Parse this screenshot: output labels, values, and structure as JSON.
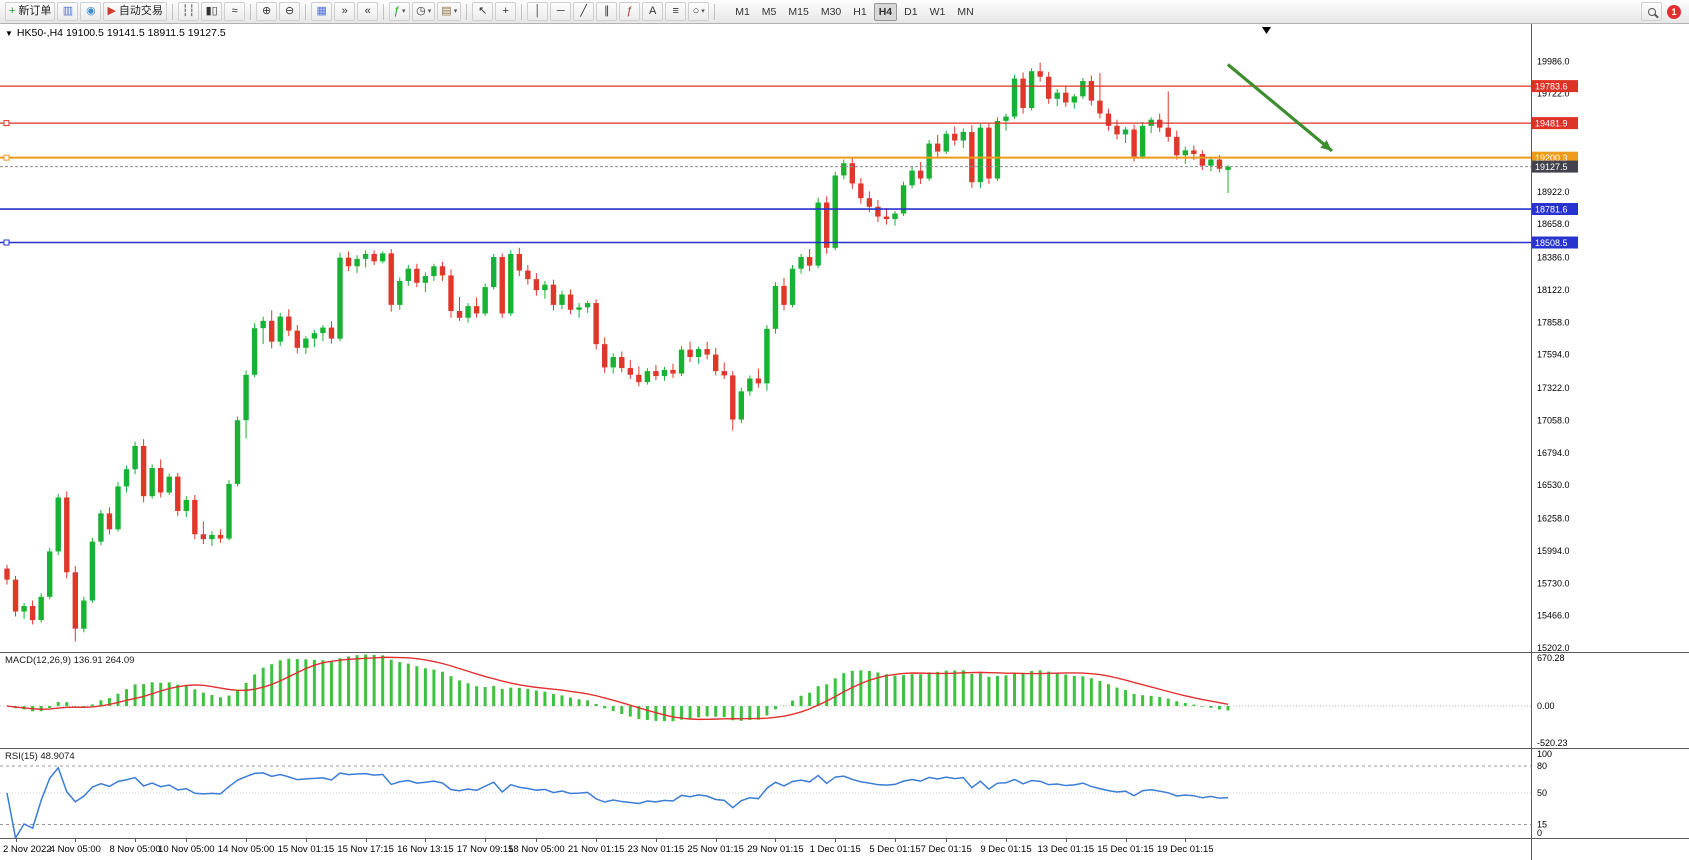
{
  "toolbar": {
    "notification_badge": "1",
    "timeframes": [
      "M1",
      "M5",
      "M15",
      "M30",
      "H1",
      "H4",
      "D1",
      "W1",
      "MN"
    ],
    "active_timeframe": "H4",
    "items": [
      {
        "type": "labeled",
        "name": "new-order-button",
        "icon": "new-order-icon",
        "glyph": "+",
        "color": "#1a9c1a",
        "label": "新订单"
      },
      {
        "type": "icon",
        "name": "charts-window-button",
        "icon": "chart-window-icon",
        "glyph": "▥",
        "color": "#4a6fd4"
      },
      {
        "type": "icon",
        "name": "profiles-button",
        "icon": "profiles-icon",
        "glyph": "◉",
        "color": "#3f8fd0"
      },
      {
        "type": "labeled",
        "name": "autotrading-button",
        "icon": "autotrading-icon",
        "glyph": "▶",
        "color": "#d03b2f",
        "label": "自动交易"
      },
      {
        "type": "sep"
      },
      {
        "type": "icon",
        "name": "ohlc-bars-button",
        "icon": "ohlc-bars-icon",
        "glyph": "┆┆",
        "color": "#333333"
      },
      {
        "type": "icon",
        "name": "candlestick-chart-button",
        "icon": "candlestick-icon",
        "glyph": "▮▯",
        "color": "#333333"
      },
      {
        "type": "icon",
        "name": "line-chart-button",
        "icon": "line-chart-icon",
        "glyph": "≈",
        "color": "#333333"
      },
      {
        "type": "sep"
      },
      {
        "type": "icon",
        "name": "zoom-in-button",
        "icon": "zoom-in-icon",
        "glyph": "⊕",
        "color": "#333333"
      },
      {
        "type": "icon",
        "name": "zoom-out-button",
        "icon": "zoom-out-icon",
        "glyph": "⊖",
        "color": "#333333"
      },
      {
        "type": "sep"
      },
      {
        "type": "icon",
        "name": "tile-windows-button",
        "icon": "tile-windows-icon",
        "glyph": "▦",
        "color": "#4a6fd4"
      },
      {
        "type": "icon",
        "name": "auto-scroll-button",
        "icon": "auto-scroll-icon",
        "glyph": "»",
        "color": "#333333"
      },
      {
        "type": "icon",
        "name": "chart-shift-button",
        "icon": "chart-shift-icon",
        "glyph": "«",
        "color": "#333333"
      },
      {
        "type": "sep"
      },
      {
        "type": "icon",
        "name": "indicators-button",
        "icon": "indicators-icon",
        "glyph": "ƒ",
        "color": "#1a9c1a",
        "caret": true
      },
      {
        "type": "icon",
        "name": "periods-button",
        "icon": "clock-icon",
        "glyph": "◷",
        "color": "#333333",
        "caret": true
      },
      {
        "type": "icon",
        "name": "templates-button",
        "icon": "template-icon",
        "glyph": "▤",
        "color": "#8a6d3b",
        "caret": true
      },
      {
        "type": "sep"
      },
      {
        "type": "icon",
        "name": "cursor-button",
        "icon": "cursor-icon",
        "glyph": "↖",
        "color": "#333333"
      },
      {
        "type": "icon",
        "name": "crosshair-button",
        "icon": "crosshair-icon",
        "glyph": "+",
        "color": "#333333"
      },
      {
        "type": "sep"
      },
      {
        "type": "icon",
        "name": "vertical-line-button",
        "icon": "vertical-line-icon",
        "glyph": "│",
        "color": "#333333"
      },
      {
        "type": "icon",
        "name": "horizontal-line-button",
        "icon": "horizontal-line-icon",
        "glyph": "─",
        "color": "#333333"
      },
      {
        "type": "icon",
        "name": "trendline-button",
        "icon": "trendline-icon",
        "glyph": "╱",
        "color": "#333333"
      },
      {
        "type": "icon",
        "name": "equidistant-channel-button",
        "icon": "channel-icon",
        "glyph": "∥",
        "color": "#333333"
      },
      {
        "type": "icon",
        "name": "fibonacci-button",
        "icon": "fibonacci-icon",
        "glyph": "ƒ",
        "color": "#b03030"
      },
      {
        "type": "icon",
        "name": "text-button",
        "icon": "text-icon",
        "glyph": "A",
        "color": "#333333"
      },
      {
        "type": "icon",
        "name": "label-button",
        "icon": "label-icon",
        "glyph": "≡",
        "color": "#333333"
      },
      {
        "type": "icon",
        "name": "shapes-button",
        "icon": "shapes-icon",
        "glyph": "○",
        "color": "#333333",
        "caret": true
      },
      {
        "type": "sep"
      },
      {
        "type": "tf-group"
      }
    ]
  },
  "chart": {
    "title": "HK50-,H4 19100.5 19141.5 18911.5 19127.5",
    "macd_label": "MACD(12,26,9) 136.91 264.09",
    "rsi_label": "RSI(15) 48.9074"
  },
  "chart_data": {
    "type": "candlestick",
    "symbol": "HK50-",
    "timeframe": "H4",
    "ohlc_display": {
      "open": 19100.5,
      "high": 19141.5,
      "low": 18911.5,
      "close": 19127.5
    },
    "y_max": 20290,
    "y_min": 15170,
    "axis_labels": [
      "19986.0",
      "19722.0",
      "19458.0",
      "19194.0",
      "18922.0",
      "18658.0",
      "18386.0",
      "18122.0",
      "17858.0",
      "17594.0",
      "17322.0",
      "17058.0",
      "16794.0",
      "16530.0",
      "16258.0",
      "15994.0",
      "15730.0",
      "15466.0",
      "15202.0"
    ],
    "hlines": [
      {
        "price": 19783.6,
        "label": "19783.6",
        "color": "#dd3226",
        "width": 1.2,
        "handle": false,
        "name": "resistance-line-19783"
      },
      {
        "price": 19481.9,
        "label": "19481.9",
        "color": "#dd3226",
        "width": 1.2,
        "handle": true,
        "name": "resistance-line-19481"
      },
      {
        "price": 19200.3,
        "label": "19200.3",
        "color": "#f09a1c",
        "width": 2,
        "handle": true,
        "name": "pivot-line-19200"
      },
      {
        "price": 18781.6,
        "label": "18781.6",
        "color": "#2733cf",
        "width": 1.6,
        "handle": false,
        "name": "support-line-18781"
      },
      {
        "price": 18508.5,
        "label": "18508.5",
        "color": "#2733cf",
        "width": 1.6,
        "handle": true,
        "name": "support-line-18508"
      }
    ],
    "current_price": {
      "value": 19127.5,
      "label": "19127.5"
    },
    "arrow": {
      "x1_frac": 0.802,
      "price1": 19960,
      "x2_frac": 0.87,
      "price2": 19255,
      "color": "#3d8e2f"
    },
    "macd": {
      "params": "12,26,9",
      "main_value": "136.91",
      "signal_value": "264.09",
      "range": [
        670.28,
        -520.23
      ],
      "axis_labels": [
        "670.28",
        "0.00",
        "-520.23"
      ]
    },
    "rsi": {
      "params": "15",
      "value": "48.9074",
      "levels": [
        80,
        15
      ],
      "mid_level": 50,
      "axis_labels": [
        "100",
        "80",
        "50",
        "15",
        "0"
      ]
    },
    "time_ticks": [
      {
        "label": "2 Nov 2022",
        "i": 1
      },
      {
        "label": "4 Nov 05:00",
        "i": 8
      },
      {
        "label": "8 Nov 05:00",
        "i": 15
      },
      {
        "label": "10 Nov 05:00",
        "i": 21
      },
      {
        "label": "14 Nov 05:00",
        "i": 28
      },
      {
        "label": "15 Nov 01:15",
        "i": 35
      },
      {
        "label": "15 Nov 17:15",
        "i": 42
      },
      {
        "label": "16 Nov 13:15",
        "i": 49
      },
      {
        "label": "17 Nov 09:15",
        "i": 56
      },
      {
        "label": "18 Nov 05:00",
        "i": 62
      },
      {
        "label": "21 Nov 01:15",
        "i": 69
      },
      {
        "label": "23 Nov 01:15",
        "i": 76
      },
      {
        "label": "25 Nov 01:15",
        "i": 83
      },
      {
        "label": "29 Nov 01:15",
        "i": 90
      },
      {
        "label": "1 Dec 01:15",
        "i": 97
      },
      {
        "label": "5 Dec 01:15",
        "i": 104
      },
      {
        "label": "7 Dec 01:15",
        "i": 110
      },
      {
        "label": "9 Dec 01:15",
        "i": 117
      },
      {
        "label": "13 Dec 01:15",
        "i": 124
      },
      {
        "label": "15 Dec 01:15",
        "i": 131
      },
      {
        "label": "19 Dec 01:15",
        "i": 138
      }
    ],
    "colors": {
      "bull": "#17b233",
      "bear": "#e0372b",
      "macd_hist": "#3ec13e",
      "macd_signal": "#e03030",
      "rsi_line": "#3b7cd4",
      "price_tag_bg": "#42424c",
      "axis_text": "#000000"
    },
    "candles": [
      [
        15850,
        15880,
        15720,
        15760
      ],
      [
        15760,
        15790,
        15460,
        15500
      ],
      [
        15500,
        15570,
        15440,
        15545
      ],
      [
        15545,
        15590,
        15395,
        15430
      ],
      [
        15430,
        15650,
        15410,
        15620
      ],
      [
        15620,
        16020,
        15600,
        15990
      ],
      [
        15990,
        16460,
        15960,
        16430
      ],
      [
        16430,
        16480,
        15770,
        15820
      ],
      [
        15820,
        15870,
        15255,
        15360
      ],
      [
        15360,
        15620,
        15330,
        15590
      ],
      [
        15590,
        16100,
        15570,
        16070
      ],
      [
        16070,
        16330,
        16040,
        16300
      ],
      [
        16300,
        16350,
        16130,
        16170
      ],
      [
        16170,
        16555,
        16150,
        16520
      ],
      [
        16520,
        16690,
        16470,
        16660
      ],
      [
        16660,
        16885,
        16620,
        16850
      ],
      [
        16850,
        16905,
        16390,
        16440
      ],
      [
        16440,
        16700,
        16420,
        16670
      ],
      [
        16670,
        16740,
        16430,
        16470
      ],
      [
        16470,
        16625,
        16450,
        16600
      ],
      [
        16600,
        16630,
        16280,
        16320
      ],
      [
        16320,
        16440,
        16270,
        16410
      ],
      [
        16410,
        16450,
        16090,
        16130
      ],
      [
        16130,
        16235,
        16050,
        16090
      ],
      [
        16090,
        16155,
        16035,
        16125
      ],
      [
        16125,
        16170,
        16060,
        16095
      ],
      [
        16095,
        16570,
        16080,
        16540
      ],
      [
        16540,
        17090,
        16520,
        17060
      ],
      [
        17060,
        17465,
        16910,
        17430
      ],
      [
        17430,
        17850,
        17410,
        17810
      ],
      [
        17810,
        17905,
        17680,
        17870
      ],
      [
        17870,
        17955,
        17645,
        17700
      ],
      [
        17700,
        17935,
        17665,
        17905
      ],
      [
        17905,
        17965,
        17745,
        17790
      ],
      [
        17790,
        17835,
        17605,
        17650
      ],
      [
        17650,
        17745,
        17600,
        17725
      ],
      [
        17725,
        17795,
        17655,
        17770
      ],
      [
        17770,
        17835,
        17705,
        17815
      ],
      [
        17815,
        17865,
        17685,
        17725
      ],
      [
        17725,
        18425,
        17705,
        18385
      ],
      [
        18385,
        18435,
        18275,
        18315
      ],
      [
        18315,
        18405,
        18260,
        18375
      ],
      [
        18375,
        18445,
        18305,
        18415
      ],
      [
        18415,
        18445,
        18325,
        18355
      ],
      [
        18355,
        18435,
        18340,
        18420
      ],
      [
        18420,
        18455,
        17945,
        18000
      ],
      [
        18000,
        18225,
        17960,
        18195
      ],
      [
        18195,
        18325,
        18155,
        18295
      ],
      [
        18295,
        18335,
        18145,
        18180
      ],
      [
        18180,
        18265,
        18105,
        18235
      ],
      [
        18235,
        18335,
        18195,
        18315
      ],
      [
        18315,
        18350,
        18195,
        18240
      ],
      [
        18240,
        18290,
        17895,
        17950
      ],
      [
        17950,
        18065,
        17870,
        17895
      ],
      [
        17895,
        18015,
        17855,
        17990
      ],
      [
        17990,
        18060,
        17895,
        17930
      ],
      [
        17930,
        18175,
        17910,
        18145
      ],
      [
        18145,
        18415,
        18125,
        18390
      ],
      [
        18390,
        18420,
        17895,
        17930
      ],
      [
        17930,
        18445,
        17910,
        18415
      ],
      [
        18415,
        18465,
        18235,
        18280
      ],
      [
        18280,
        18325,
        18165,
        18210
      ],
      [
        18210,
        18260,
        18075,
        18120
      ],
      [
        18120,
        18195,
        18050,
        18165
      ],
      [
        18165,
        18205,
        17955,
        18000
      ],
      [
        18000,
        18115,
        17965,
        18085
      ],
      [
        18085,
        18125,
        17925,
        17960
      ],
      [
        17960,
        18015,
        17895,
        17980
      ],
      [
        17980,
        18035,
        17935,
        18015
      ],
      [
        18015,
        18045,
        17635,
        17680
      ],
      [
        17680,
        17735,
        17445,
        17490
      ],
      [
        17490,
        17605,
        17440,
        17575
      ],
      [
        17575,
        17620,
        17450,
        17485
      ],
      [
        17485,
        17550,
        17395,
        17430
      ],
      [
        17430,
        17500,
        17335,
        17370
      ],
      [
        17370,
        17485,
        17350,
        17460
      ],
      [
        17460,
        17510,
        17385,
        17420
      ],
      [
        17420,
        17495,
        17380,
        17470
      ],
      [
        17470,
        17520,
        17405,
        17440
      ],
      [
        17440,
        17665,
        17420,
        17635
      ],
      [
        17635,
        17700,
        17535,
        17575
      ],
      [
        17575,
        17660,
        17520,
        17640
      ],
      [
        17640,
        17700,
        17555,
        17595
      ],
      [
        17595,
        17650,
        17425,
        17460
      ],
      [
        17460,
        17530,
        17395,
        17425
      ],
      [
        17425,
        17460,
        16975,
        17065
      ],
      [
        17065,
        17325,
        17035,
        17295
      ],
      [
        17295,
        17425,
        17260,
        17400
      ],
      [
        17400,
        17480,
        17325,
        17360
      ],
      [
        17360,
        17835,
        17300,
        17805
      ],
      [
        17805,
        18185,
        17765,
        18155
      ],
      [
        18155,
        18220,
        17955,
        18000
      ],
      [
        18000,
        18325,
        17980,
        18295
      ],
      [
        18295,
        18415,
        18255,
        18390
      ],
      [
        18390,
        18455,
        18275,
        18320
      ],
      [
        18320,
        18875,
        18300,
        18835
      ],
      [
        18835,
        18885,
        18415,
        18465
      ],
      [
        18465,
        19085,
        18445,
        19055
      ],
      [
        19055,
        19185,
        19025,
        19155
      ],
      [
        19155,
        19195,
        18945,
        18990
      ],
      [
        18990,
        19035,
        18825,
        18870
      ],
      [
        18870,
        18925,
        18755,
        18800
      ],
      [
        18800,
        18855,
        18675,
        18720
      ],
      [
        18720,
        18790,
        18655,
        18700
      ],
      [
        18700,
        18765,
        18645,
        18745
      ],
      [
        18745,
        19005,
        18725,
        18975
      ],
      [
        18975,
        19125,
        18950,
        19095
      ],
      [
        19095,
        19165,
        18985,
        19030
      ],
      [
        19030,
        19345,
        19010,
        19315
      ],
      [
        19315,
        19385,
        19205,
        19250
      ],
      [
        19250,
        19420,
        19230,
        19395
      ],
      [
        19395,
        19455,
        19300,
        19340
      ],
      [
        19340,
        19440,
        19280,
        19410
      ],
      [
        19410,
        19465,
        18955,
        19000
      ],
      [
        19000,
        19475,
        18950,
        19445
      ],
      [
        19445,
        19485,
        18985,
        19030
      ],
      [
        19030,
        19530,
        19010,
        19500
      ],
      [
        19500,
        19560,
        19420,
        19535
      ],
      [
        19535,
        19875,
        19515,
        19845
      ],
      [
        19845,
        19895,
        19560,
        19605
      ],
      [
        19605,
        19930,
        19585,
        19905
      ],
      [
        19905,
        19975,
        19820,
        19860
      ],
      [
        19860,
        19900,
        19640,
        19680
      ],
      [
        19680,
        19760,
        19620,
        19730
      ],
      [
        19730,
        19780,
        19615,
        19650
      ],
      [
        19650,
        19720,
        19600,
        19700
      ],
      [
        19700,
        19850,
        19680,
        19825
      ],
      [
        19825,
        19870,
        19625,
        19665
      ],
      [
        19665,
        19890,
        19520,
        19560
      ],
      [
        19560,
        19600,
        19420,
        19460
      ],
      [
        19460,
        19510,
        19350,
        19390
      ],
      [
        19390,
        19450,
        19320,
        19430
      ],
      [
        19430,
        19470,
        19170,
        19210
      ],
      [
        19210,
        19490,
        19190,
        19460
      ],
      [
        19460,
        19530,
        19400,
        19510
      ],
      [
        19510,
        19560,
        19410,
        19445
      ],
      [
        19445,
        19740,
        19330,
        19370
      ],
      [
        19370,
        19420,
        19185,
        19220
      ],
      [
        19220,
        19290,
        19150,
        19260
      ],
      [
        19260,
        19300,
        19180,
        19230
      ],
      [
        19230,
        19260,
        19100,
        19135
      ],
      [
        19135,
        19210,
        19090,
        19185
      ],
      [
        19185,
        19220,
        19080,
        19110
      ],
      [
        19100.5,
        19141.5,
        18911.5,
        19127.5
      ]
    ]
  }
}
